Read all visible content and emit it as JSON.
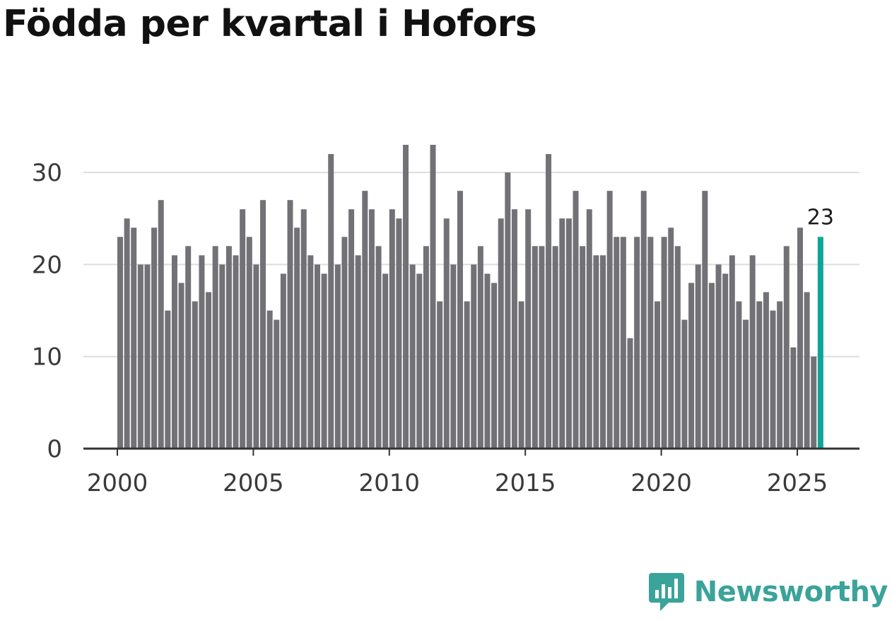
{
  "title": "Födda per kvartal i Hofors",
  "brand": {
    "name": "Newsworthy",
    "icon": "chart-speech-bubble-icon"
  },
  "colors": {
    "bar": "#727176",
    "highlight": "#0ea598",
    "grid": "#dddddd",
    "axis": "#333333",
    "brand": "#3aa39a"
  },
  "chart_data": {
    "type": "bar",
    "title": "Födda per kvartal i Hofors",
    "xlabel": "",
    "ylabel": "",
    "ylim": [
      0,
      33
    ],
    "yticks": [
      0,
      10,
      20,
      30
    ],
    "xticks": [
      "2000",
      "2005",
      "2010",
      "2015",
      "2020",
      "2025"
    ],
    "grid": true,
    "start_year": 2000,
    "highlight_last": true,
    "highlight_label": "23",
    "values": [
      23,
      25,
      24,
      20,
      20,
      24,
      27,
      15,
      21,
      18,
      22,
      16,
      21,
      17,
      22,
      20,
      22,
      21,
      26,
      23,
      20,
      27,
      15,
      14,
      19,
      27,
      24,
      26,
      21,
      20,
      19,
      32,
      20,
      23,
      26,
      21,
      28,
      26,
      22,
      19,
      26,
      25,
      33,
      20,
      19,
      22,
      33,
      16,
      25,
      20,
      28,
      16,
      20,
      22,
      19,
      18,
      25,
      30,
      26,
      16,
      26,
      22,
      22,
      32,
      22,
      25,
      25,
      28,
      22,
      26,
      21,
      21,
      28,
      23,
      23,
      12,
      23,
      28,
      23,
      16,
      23,
      24,
      22,
      14,
      18,
      20,
      28,
      18,
      20,
      19,
      21,
      16,
      14,
      21,
      16,
      17,
      15,
      16,
      22,
      11,
      24,
      17,
      10,
      23
    ]
  }
}
